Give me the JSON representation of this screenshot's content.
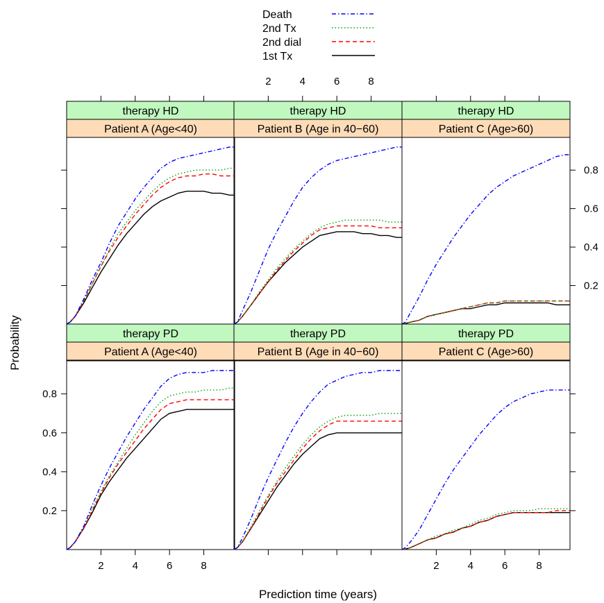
{
  "chart_data": {
    "type": "line",
    "xlabel": "Prediction time (years)",
    "ylabel": "Probability",
    "xlim": [
      0,
      9.8
    ],
    "ylim": [
      0,
      0.97
    ],
    "x_ticks": [
      2,
      4,
      6,
      8
    ],
    "y_ticks": [
      0.2,
      0.4,
      0.6,
      0.8
    ],
    "grid": false,
    "legend_position": "top-center",
    "legend": [
      {
        "label": "Death",
        "color": "#0000ff",
        "dash": "dotdash"
      },
      {
        "label": "2nd Tx",
        "color": "#00a000",
        "dash": "dotted"
      },
      {
        "label": "2nd dial",
        "color": "#ff0000",
        "dash": "dashed"
      },
      {
        "label": "1st Tx",
        "color": "#000000",
        "dash": "solid"
      }
    ],
    "series_x": [
      0,
      0.2,
      0.5,
      1,
      1.5,
      2,
      2.5,
      3,
      3.5,
      4,
      4.5,
      5,
      5.5,
      6,
      6.5,
      7,
      7.5,
      8,
      8.5,
      9,
      9.5,
      9.8
    ],
    "panels": [
      {
        "therapy": "therapy HD",
        "patient": "Patient A (Age<40)",
        "series": [
          {
            "name": "Death",
            "values": [
              0,
              0.01,
              0.04,
              0.13,
              0.23,
              0.32,
              0.42,
              0.51,
              0.58,
              0.65,
              0.71,
              0.76,
              0.81,
              0.84,
              0.86,
              0.87,
              0.88,
              0.89,
              0.9,
              0.91,
              0.92,
              0.92
            ]
          },
          {
            "name": "2nd Tx",
            "values": [
              0,
              0.01,
              0.04,
              0.12,
              0.21,
              0.3,
              0.39,
              0.47,
              0.53,
              0.59,
              0.64,
              0.69,
              0.73,
              0.76,
              0.78,
              0.79,
              0.8,
              0.8,
              0.8,
              0.8,
              0.81,
              0.81
            ]
          },
          {
            "name": "2nd dial",
            "values": [
              0,
              0.01,
              0.04,
              0.12,
              0.21,
              0.3,
              0.38,
              0.45,
              0.51,
              0.57,
              0.62,
              0.67,
              0.71,
              0.74,
              0.76,
              0.77,
              0.77,
              0.78,
              0.78,
              0.77,
              0.77,
              0.77
            ]
          },
          {
            "name": "1st Tx",
            "values": [
              0,
              0.01,
              0.04,
              0.11,
              0.19,
              0.27,
              0.34,
              0.41,
              0.47,
              0.52,
              0.57,
              0.61,
              0.64,
              0.66,
              0.68,
              0.69,
              0.69,
              0.69,
              0.68,
              0.68,
              0.67,
              0.67
            ]
          }
        ]
      },
      {
        "therapy": "therapy HD",
        "patient": "Patient B (Age in 40−60)",
        "series": [
          {
            "name": "Death",
            "values": [
              0,
              0.01,
              0.07,
              0.17,
              0.28,
              0.39,
              0.48,
              0.56,
              0.64,
              0.71,
              0.76,
              0.8,
              0.83,
              0.85,
              0.86,
              0.87,
              0.88,
              0.89,
              0.9,
              0.91,
              0.92,
              0.92
            ]
          },
          {
            "name": "2nd Tx",
            "values": [
              0,
              0.01,
              0.04,
              0.1,
              0.17,
              0.23,
              0.29,
              0.34,
              0.39,
              0.43,
              0.47,
              0.5,
              0.52,
              0.53,
              0.54,
              0.54,
              0.54,
              0.54,
              0.54,
              0.53,
              0.53,
              0.53
            ]
          },
          {
            "name": "2nd dial",
            "values": [
              0,
              0.01,
              0.04,
              0.1,
              0.16,
              0.22,
              0.28,
              0.33,
              0.38,
              0.42,
              0.46,
              0.49,
              0.5,
              0.51,
              0.51,
              0.51,
              0.51,
              0.51,
              0.5,
              0.5,
              0.5,
              0.5
            ]
          },
          {
            "name": "1st Tx",
            "values": [
              0,
              0.01,
              0.04,
              0.1,
              0.16,
              0.22,
              0.27,
              0.32,
              0.36,
              0.4,
              0.43,
              0.46,
              0.47,
              0.48,
              0.48,
              0.48,
              0.47,
              0.47,
              0.46,
              0.46,
              0.45,
              0.45
            ]
          }
        ]
      },
      {
        "therapy": "therapy HD",
        "patient": "Patient C (Age>60)",
        "series": [
          {
            "name": "Death",
            "values": [
              0,
              0.01,
              0.06,
              0.14,
              0.23,
              0.31,
              0.38,
              0.45,
              0.51,
              0.57,
              0.62,
              0.67,
              0.71,
              0.74,
              0.77,
              0.79,
              0.81,
              0.83,
              0.85,
              0.87,
              0.88,
              0.88
            ]
          },
          {
            "name": "2nd Tx",
            "values": [
              0,
              0.003,
              0.01,
              0.02,
              0.04,
              0.05,
              0.06,
              0.07,
              0.08,
              0.09,
              0.1,
              0.11,
              0.11,
              0.12,
              0.12,
              0.12,
              0.12,
              0.12,
              0.12,
              0.12,
              0.12,
              0.12
            ]
          },
          {
            "name": "2nd dial",
            "values": [
              0,
              0.003,
              0.01,
              0.02,
              0.04,
              0.05,
              0.06,
              0.07,
              0.08,
              0.09,
              0.1,
              0.11,
              0.11,
              0.12,
              0.12,
              0.12,
              0.12,
              0.12,
              0.12,
              0.12,
              0.12,
              0.12
            ]
          },
          {
            "name": "1st Tx",
            "values": [
              0,
              0.003,
              0.01,
              0.02,
              0.04,
              0.05,
              0.06,
              0.07,
              0.08,
              0.08,
              0.09,
              0.1,
              0.1,
              0.11,
              0.11,
              0.11,
              0.11,
              0.11,
              0.11,
              0.1,
              0.1,
              0.1
            ]
          }
        ]
      },
      {
        "therapy": "therapy PD",
        "patient": "Patient A (Age<40)",
        "series": [
          {
            "name": "Death",
            "values": [
              0,
              0.01,
              0.04,
              0.12,
              0.23,
              0.33,
              0.42,
              0.5,
              0.58,
              0.65,
              0.72,
              0.78,
              0.84,
              0.88,
              0.9,
              0.91,
              0.91,
              0.91,
              0.92,
              0.92,
              0.92,
              0.92
            ]
          },
          {
            "name": "2nd Tx",
            "values": [
              0,
              0.01,
              0.04,
              0.12,
              0.21,
              0.3,
              0.38,
              0.45,
              0.52,
              0.59,
              0.65,
              0.71,
              0.76,
              0.79,
              0.8,
              0.81,
              0.81,
              0.82,
              0.82,
              0.82,
              0.83,
              0.83
            ]
          },
          {
            "name": "2nd dial",
            "values": [
              0,
              0.01,
              0.04,
              0.11,
              0.2,
              0.29,
              0.37,
              0.44,
              0.5,
              0.56,
              0.62,
              0.67,
              0.72,
              0.75,
              0.76,
              0.77,
              0.77,
              0.77,
              0.77,
              0.77,
              0.77,
              0.77
            ]
          },
          {
            "name": "1st Tx",
            "values": [
              0,
              0.01,
              0.04,
              0.11,
              0.19,
              0.28,
              0.35,
              0.41,
              0.47,
              0.52,
              0.57,
              0.62,
              0.67,
              0.7,
              0.71,
              0.72,
              0.72,
              0.72,
              0.72,
              0.72,
              0.72,
              0.72
            ]
          }
        ]
      },
      {
        "therapy": "therapy PD",
        "patient": "Patient B (Age in 40−60)",
        "series": [
          {
            "name": "Death",
            "values": [
              0,
              0.01,
              0.06,
              0.16,
              0.27,
              0.37,
              0.46,
              0.55,
              0.63,
              0.7,
              0.76,
              0.81,
              0.85,
              0.87,
              0.89,
              0.9,
              0.91,
              0.91,
              0.92,
              0.92,
              0.92,
              0.92
            ]
          },
          {
            "name": "2nd Tx",
            "values": [
              0,
              0.01,
              0.04,
              0.12,
              0.2,
              0.28,
              0.35,
              0.42,
              0.48,
              0.54,
              0.59,
              0.63,
              0.66,
              0.68,
              0.69,
              0.69,
              0.69,
              0.69,
              0.7,
              0.7,
              0.7,
              0.7
            ]
          },
          {
            "name": "2nd dial",
            "values": [
              0,
              0.01,
              0.04,
              0.11,
              0.19,
              0.27,
              0.34,
              0.4,
              0.46,
              0.52,
              0.57,
              0.61,
              0.64,
              0.66,
              0.66,
              0.66,
              0.66,
              0.66,
              0.66,
              0.66,
              0.66,
              0.66
            ]
          },
          {
            "name": "1st Tx",
            "values": [
              0,
              0.01,
              0.04,
              0.11,
              0.18,
              0.25,
              0.32,
              0.38,
              0.44,
              0.49,
              0.53,
              0.57,
              0.59,
              0.6,
              0.6,
              0.6,
              0.6,
              0.6,
              0.6,
              0.6,
              0.6,
              0.6
            ]
          }
        ]
      },
      {
        "therapy": "therapy PD",
        "patient": "Patient C (Age>60)",
        "series": [
          {
            "name": "Death",
            "values": [
              0,
              0.01,
              0.04,
              0.1,
              0.18,
              0.26,
              0.34,
              0.41,
              0.47,
              0.53,
              0.59,
              0.64,
              0.69,
              0.73,
              0.76,
              0.78,
              0.8,
              0.81,
              0.82,
              0.82,
              0.82,
              0.82
            ]
          },
          {
            "name": "2nd Tx",
            "values": [
              0,
              0.003,
              0.01,
              0.03,
              0.05,
              0.07,
              0.08,
              0.1,
              0.11,
              0.13,
              0.15,
              0.16,
              0.18,
              0.19,
              0.2,
              0.2,
              0.2,
              0.21,
              0.21,
              0.21,
              0.21,
              0.21
            ]
          },
          {
            "name": "2nd dial",
            "values": [
              0,
              0.003,
              0.01,
              0.03,
              0.05,
              0.06,
              0.08,
              0.09,
              0.11,
              0.12,
              0.14,
              0.15,
              0.17,
              0.18,
              0.19,
              0.19,
              0.19,
              0.19,
              0.19,
              0.2,
              0.2,
              0.2
            ]
          },
          {
            "name": "1st Tx",
            "values": [
              0,
              0.003,
              0.01,
              0.03,
              0.05,
              0.06,
              0.08,
              0.09,
              0.11,
              0.12,
              0.14,
              0.15,
              0.17,
              0.18,
              0.19,
              0.19,
              0.19,
              0.19,
              0.19,
              0.19,
              0.19,
              0.19
            ]
          }
        ]
      }
    ]
  },
  "strip_colors": {
    "therapy": "#c0f8c0",
    "patient": "#ffdcb8"
  }
}
